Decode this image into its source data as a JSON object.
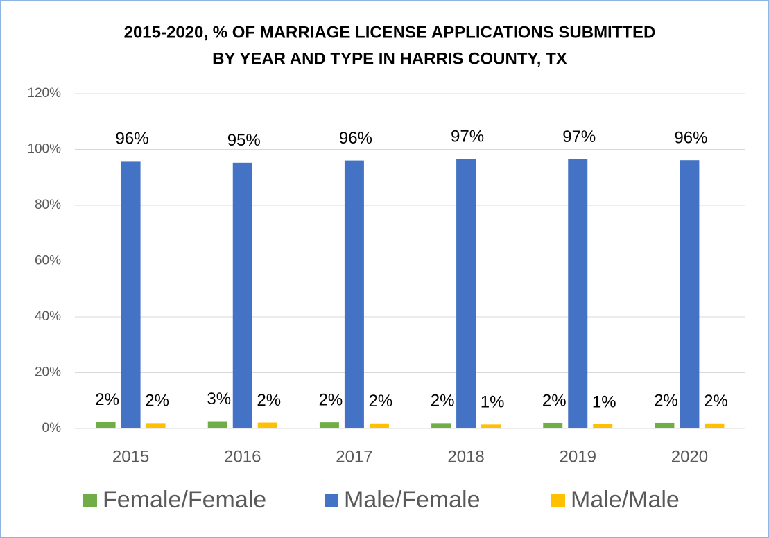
{
  "chart_data": {
    "type": "bar",
    "title": [
      "2015-2020, % OF MARRIAGE LICENSE APPLICATIONS SUBMITTED",
      "BY YEAR AND TYPE IN HARRIS COUNTY, TX"
    ],
    "categories": [
      "2015",
      "2016",
      "2017",
      "2018",
      "2019",
      "2020"
    ],
    "series": [
      {
        "name": "Female/Female",
        "color": "#70ad47",
        "values": [
          2.3,
          2.6,
          2.2,
          1.9,
          2.0,
          2.0
        ],
        "value_labels": [
          "2%",
          "3%",
          "2%",
          "2%",
          "2%",
          "2%"
        ]
      },
      {
        "name": "Male/Female",
        "color": "#4472c4",
        "values": [
          95.8,
          95.2,
          96.0,
          96.6,
          96.5,
          96.1
        ],
        "value_labels": [
          "96%",
          "95%",
          "96%",
          "97%",
          "97%",
          "96%"
        ]
      },
      {
        "name": "Male/Male",
        "color": "#ffc000",
        "values": [
          1.9,
          2.1,
          1.8,
          1.4,
          1.5,
          1.8
        ],
        "value_labels": [
          "2%",
          "2%",
          "2%",
          "1%",
          "1%",
          "2%"
        ]
      }
    ],
    "ylim": [
      0,
      120
    ],
    "yticks": [
      {
        "value": 0,
        "label": "0%"
      },
      {
        "value": 20,
        "label": "20%"
      },
      {
        "value": 40,
        "label": "40%"
      },
      {
        "value": 60,
        "label": "60%"
      },
      {
        "value": 80,
        "label": "80%"
      },
      {
        "value": 100,
        "label": "100%"
      },
      {
        "value": 120,
        "label": "120%"
      }
    ],
    "grid": true,
    "legend": "bottom"
  }
}
